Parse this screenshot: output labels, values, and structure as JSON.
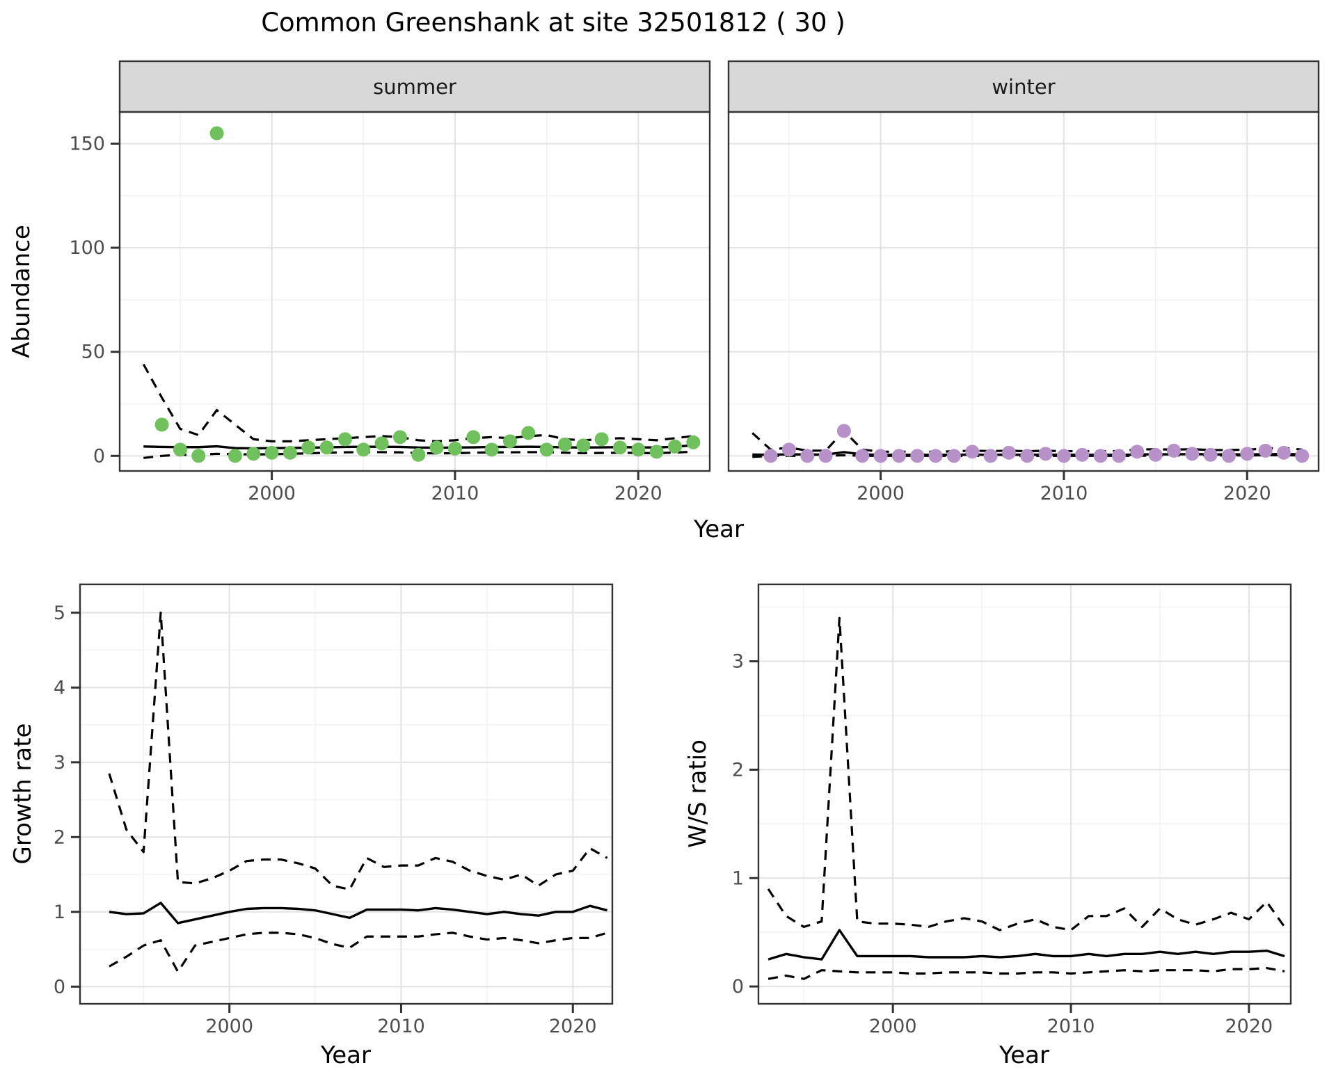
{
  "title": "Common Greenshank at site 32501812 ( 30 )",
  "facets": {
    "summer": "summer",
    "winter": "winter"
  },
  "axes": {
    "x_label": "Year",
    "y_label_top": "Abundance",
    "y_label_growth": "Growth rate",
    "y_label_ws": "W/S ratio"
  },
  "colors": {
    "summer_point": "#71c05e",
    "winter_point": "#b692c8",
    "line": "#000000",
    "strip_fill": "#d8d8d8",
    "grid_major": "#e4e4e4",
    "grid_minor": "#f2f2f2",
    "panel_border": "#333333",
    "tick_label_color": "#4d4d4d"
  },
  "chart_data": [
    {
      "id": "abundance-summer",
      "type": "scatter",
      "facet_label": "summer",
      "ylabel": "Abundance",
      "xlabel": "Year",
      "xlim": [
        1991.7,
        2023.9
      ],
      "ylim": [
        -7.25,
        165.2
      ],
      "x_ticks": [
        2000,
        2010,
        2020
      ],
      "x_tick_labels": [
        "2000",
        "2010",
        "2020"
      ],
      "x_minor": [
        1995,
        2005,
        2015
      ],
      "y_ticks": [
        0,
        50,
        100,
        150
      ],
      "y_tick_labels": [
        "0",
        "50",
        "100",
        "150"
      ],
      "y_minor": [
        25,
        75,
        125
      ],
      "point_color": "#71c05e",
      "points": {
        "year_start": 1994,
        "values": [
          15,
          3,
          0,
          155,
          0,
          1,
          1.5,
          1.5,
          4,
          4,
          8,
          3,
          6,
          9,
          0.5,
          4,
          3.5,
          9,
          3,
          7,
          11,
          3,
          5.5,
          5,
          8,
          4,
          3,
          2,
          4.5,
          6.5
        ]
      },
      "median": {
        "year_start": 1993,
        "values": [
          4.5,
          4.3,
          4.2,
          4.2,
          4.6,
          3.7,
          3.6,
          3.7,
          3.8,
          3.9,
          4.1,
          4.3,
          4.4,
          4.4,
          4.3,
          4.0,
          3.9,
          4.0,
          4.1,
          4.3,
          4.3,
          4.4,
          4.3,
          4.1,
          4.0,
          4.1,
          4.2,
          4.1,
          4.0,
          4.4,
          5.1
        ]
      },
      "upper": {
        "year_start": 1993,
        "values": [
          44,
          28,
          13,
          10,
          22,
          15,
          8,
          7,
          7,
          7.5,
          8,
          8.5,
          9,
          9.5,
          9,
          7.5,
          7,
          7.5,
          8.5,
          9,
          8.5,
          9.5,
          10,
          8,
          7.5,
          8,
          8.5,
          8,
          7.5,
          8.5,
          9.5
        ]
      },
      "lower": {
        "year_start": 1993,
        "values": [
          -1,
          0,
          0.5,
          0.5,
          1,
          0.8,
          0.7,
          0.8,
          1,
          1.2,
          1.5,
          1.7,
          1.8,
          1.8,
          1.7,
          1.3,
          1.2,
          1.3,
          1.5,
          1.7,
          1.7,
          1.8,
          1.8,
          1.5,
          1.3,
          1.4,
          1.5,
          1.4,
          1.3,
          1.6,
          2
        ]
      }
    },
    {
      "id": "abundance-winter",
      "type": "scatter",
      "facet_label": "winter",
      "ylabel": "Abundance",
      "xlabel": "Year",
      "xlim": [
        1991.7,
        2023.9
      ],
      "ylim": [
        -7.25,
        165.2
      ],
      "x_ticks": [
        2000,
        2010,
        2020
      ],
      "x_tick_labels": [
        "2000",
        "2010",
        "2020"
      ],
      "x_minor": [
        1995,
        2005,
        2015
      ],
      "y_ticks": [
        0,
        50,
        100,
        150
      ],
      "y_tick_labels": [
        "0",
        "50",
        "100",
        "150"
      ],
      "y_minor": [
        25,
        75,
        125
      ],
      "point_color": "#b692c8",
      "points": {
        "year_start": 1994,
        "values": [
          0,
          3,
          0,
          0,
          12,
          0,
          0,
          0,
          0,
          0,
          0,
          2,
          0,
          1.5,
          0,
          1,
          0,
          0.5,
          0,
          0,
          2,
          0.5,
          2.5,
          1,
          0.5,
          0,
          1,
          2.5,
          1.5,
          0
        ]
      },
      "median": {
        "year_start": 1993,
        "values": [
          0.6,
          0.5,
          0.8,
          0.6,
          0.6,
          1.8,
          0.7,
          0.5,
          0.5,
          0.5,
          0.5,
          0.5,
          0.6,
          0.5,
          0.6,
          0.5,
          0.6,
          0.5,
          0.5,
          0.5,
          0.5,
          0.6,
          0.8,
          0.7,
          0.9,
          0.7,
          0.7,
          0.7,
          0.8,
          0.9,
          0.7
        ]
      },
      "upper": {
        "year_start": 1993,
        "values": [
          11,
          3,
          4,
          2.5,
          2.5,
          12,
          3,
          2,
          2,
          2,
          2,
          2.2,
          2.5,
          2.3,
          2.5,
          2.2,
          2.5,
          2.2,
          2.3,
          2.2,
          2.3,
          3,
          3.2,
          3,
          3.2,
          2.8,
          2.8,
          3,
          3.5,
          3.8,
          3
        ]
      },
      "lower": {
        "year_start": 1993,
        "values": [
          -0.5,
          0,
          0,
          0,
          0,
          0.3,
          0,
          0,
          0,
          0,
          0,
          0,
          0,
          0,
          0,
          0,
          0,
          0,
          0,
          0,
          0,
          0,
          0.2,
          0.2,
          0.2,
          0.2,
          0.2,
          0.2,
          0.3,
          0.3,
          0.2
        ]
      }
    },
    {
      "id": "growth-rate",
      "type": "line",
      "ylabel": "Growth rate",
      "xlabel": "Year",
      "xlim": [
        1991.3,
        2022.3
      ],
      "ylim": [
        -0.23,
        5.38
      ],
      "x_ticks": [
        2000,
        2010,
        2020
      ],
      "x_tick_labels": [
        "2000",
        "2010",
        "2020"
      ],
      "x_minor": [
        1995,
        2005,
        2015
      ],
      "y_ticks": [
        0,
        1,
        2,
        3,
        4,
        5
      ],
      "y_tick_labels": [
        "0",
        "1",
        "2",
        "3",
        "4",
        "5"
      ],
      "y_minor": [
        0.5,
        1.5,
        2.5,
        3.5,
        4.5
      ],
      "median": {
        "year_start": 1993,
        "values": [
          1.0,
          0.97,
          0.98,
          1.12,
          0.85,
          0.9,
          0.95,
          1.0,
          1.04,
          1.05,
          1.05,
          1.04,
          1.02,
          0.97,
          0.92,
          1.03,
          1.03,
          1.03,
          1.02,
          1.05,
          1.03,
          1.0,
          0.97,
          1.0,
          0.97,
          0.95,
          1.0,
          1.0,
          1.08,
          1.02
        ]
      },
      "upper": {
        "year_start": 1993,
        "values": [
          2.85,
          2.1,
          1.8,
          5.0,
          1.4,
          1.38,
          1.45,
          1.55,
          1.68,
          1.7,
          1.7,
          1.65,
          1.58,
          1.35,
          1.3,
          1.72,
          1.6,
          1.62,
          1.62,
          1.72,
          1.67,
          1.55,
          1.48,
          1.43,
          1.5,
          1.35,
          1.5,
          1.55,
          1.85,
          1.72
        ]
      },
      "lower": {
        "year_start": 1993,
        "values": [
          0.27,
          0.4,
          0.55,
          0.62,
          0.2,
          0.55,
          0.6,
          0.65,
          0.7,
          0.72,
          0.72,
          0.7,
          0.65,
          0.57,
          0.52,
          0.67,
          0.67,
          0.67,
          0.67,
          0.7,
          0.72,
          0.67,
          0.63,
          0.65,
          0.62,
          0.58,
          0.62,
          0.65,
          0.65,
          0.72
        ]
      }
    },
    {
      "id": "ws-ratio",
      "type": "line",
      "ylabel": "W/S ratio",
      "xlabel": "Year",
      "xlim": [
        1992.45,
        2022.35
      ],
      "ylim": [
        -0.16,
        3.71
      ],
      "x_ticks": [
        2000,
        2010,
        2020
      ],
      "x_tick_labels": [
        "2000",
        "2010",
        "2020"
      ],
      "x_minor": [
        1995,
        2005,
        2015
      ],
      "y_ticks": [
        0,
        1,
        2,
        3
      ],
      "y_tick_labels": [
        "0",
        "1",
        "2",
        "3"
      ],
      "y_minor": [
        0.5,
        1.5,
        2.5,
        3.5
      ],
      "median": {
        "year_start": 1993,
        "values": [
          0.25,
          0.3,
          0.27,
          0.25,
          0.52,
          0.28,
          0.28,
          0.28,
          0.28,
          0.27,
          0.27,
          0.27,
          0.28,
          0.27,
          0.28,
          0.3,
          0.28,
          0.28,
          0.3,
          0.28,
          0.3,
          0.3,
          0.32,
          0.3,
          0.32,
          0.3,
          0.32,
          0.32,
          0.33,
          0.28
        ]
      },
      "upper": {
        "year_start": 1993,
        "values": [
          0.9,
          0.65,
          0.55,
          0.6,
          3.4,
          0.6,
          0.58,
          0.58,
          0.57,
          0.55,
          0.6,
          0.63,
          0.6,
          0.52,
          0.58,
          0.62,
          0.55,
          0.52,
          0.65,
          0.65,
          0.72,
          0.55,
          0.72,
          0.62,
          0.57,
          0.62,
          0.68,
          0.62,
          0.78,
          0.55
        ]
      },
      "lower": {
        "year_start": 1993,
        "values": [
          0.07,
          0.1,
          0.07,
          0.15,
          0.14,
          0.13,
          0.13,
          0.13,
          0.12,
          0.12,
          0.13,
          0.13,
          0.13,
          0.12,
          0.12,
          0.13,
          0.13,
          0.12,
          0.13,
          0.14,
          0.15,
          0.14,
          0.15,
          0.15,
          0.15,
          0.14,
          0.16,
          0.16,
          0.17,
          0.14
        ]
      }
    }
  ]
}
